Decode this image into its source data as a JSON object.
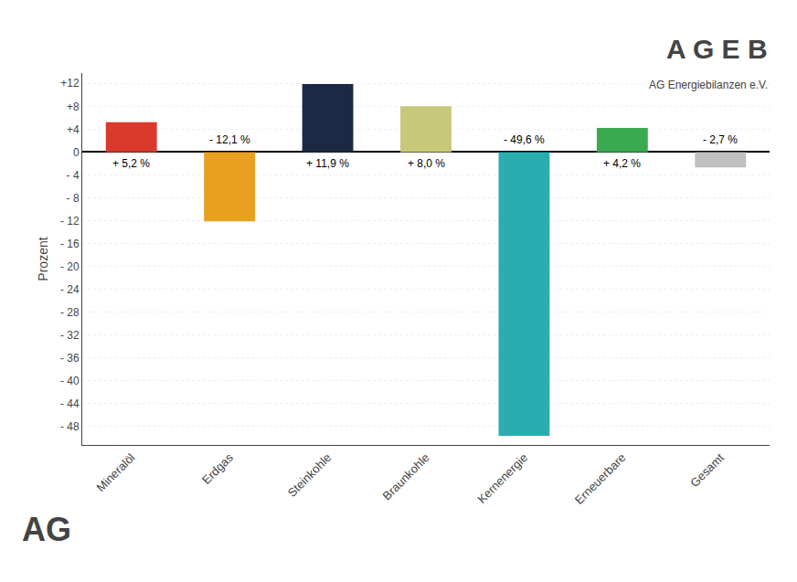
{
  "chart_data": {
    "type": "bar",
    "categories": [
      "Mineralöl",
      "Erdgas",
      "Steinkohle",
      "Braunkohle",
      "Kernenergie",
      "Erneuerbare",
      "Gesamt"
    ],
    "values": [
      5.2,
      -12.1,
      11.9,
      8.0,
      -49.6,
      4.2,
      -2.7
    ],
    "value_labels": [
      "+ 5,2 %",
      "- 12,1 %",
      "+ 11,9 %",
      "+ 8,0 %",
      "- 49,6 %",
      "+ 4,2 %",
      "- 2,7 %"
    ],
    "data_labels": true,
    "colors": [
      "#d93a2b",
      "#e8a020",
      "#1a2a45",
      "#c8c87a",
      "#2aacb0",
      "#3aaa50",
      "#c0c0c0"
    ],
    "y_label": "Prozent",
    "ylim": [
      -51.2,
      13.8
    ],
    "yticks": [
      {
        "value": 12,
        "label": "+12"
      },
      {
        "value": 8,
        "label": "+8"
      },
      {
        "value": 4,
        "label": "+4"
      },
      0,
      {
        "value": -4,
        "label": "- 4"
      },
      {
        "value": -8,
        "label": "- 8"
      },
      {
        "value": -12,
        "label": "- 12"
      },
      {
        "value": -16,
        "label": "- 16"
      },
      {
        "value": -20,
        "label": "- 20"
      },
      {
        "value": -24,
        "label": "- 24"
      },
      {
        "value": -28,
        "label": "- 28"
      },
      {
        "value": -32,
        "label": "- 32"
      },
      {
        "value": -36,
        "label": "- 36"
      },
      {
        "value": -40,
        "label": "- 40"
      },
      {
        "value": -44,
        "label": "- 44"
      },
      {
        "value": -48,
        "label": "- 48"
      }
    ],
    "grid": true,
    "annotations": [
      "A G E B",
      "AG Energiebilanzen e.V.",
      "AG"
    ]
  }
}
